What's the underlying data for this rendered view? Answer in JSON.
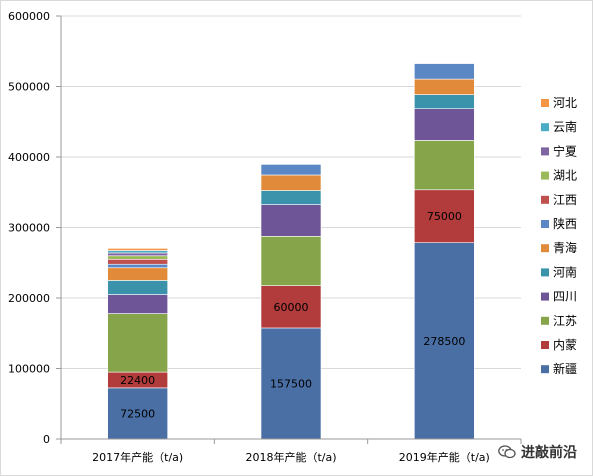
{
  "chart_data": {
    "type": "bar",
    "stacked": true,
    "title": "",
    "xlabel": "",
    "ylabel": "",
    "categories": [
      "2017年产能（t/a)",
      "2018年产能（t/a)",
      "2019年产能（t/a)"
    ],
    "ylim": [
      0,
      600000
    ],
    "yticks": [
      0,
      100000,
      200000,
      300000,
      400000,
      500000,
      600000
    ],
    "grid": "horizontal",
    "legend_position": "right",
    "series": [
      {
        "name": "新疆",
        "color": "#4a6fa5",
        "values": [
          72500,
          157500,
          278500
        ],
        "labels": [
          "72500",
          "157500",
          "278500"
        ]
      },
      {
        "name": "内蒙",
        "color": "#b23b3b",
        "values": [
          22400,
          60000,
          75000
        ],
        "labels": [
          "22400",
          "60000",
          "75000"
        ]
      },
      {
        "name": "江苏",
        "color": "#86a44a",
        "values": [
          83000,
          70000,
          70000
        ],
        "labels": null
      },
      {
        "name": "四川",
        "color": "#6e5597",
        "values": [
          27000,
          45000,
          45000
        ],
        "labels": null
      },
      {
        "name": "河南",
        "color": "#3a93ab",
        "values": [
          20000,
          20000,
          20000
        ],
        "labels": null
      },
      {
        "name": "青海",
        "color": "#e08a3a",
        "values": [
          18000,
          22000,
          22000
        ],
        "labels": null
      },
      {
        "name": "陕西",
        "color": "#5b87c5",
        "values": [
          5000,
          15000,
          22000
        ],
        "labels": null
      },
      {
        "name": "江西",
        "color": "#c0504d",
        "values": [
          7000,
          0,
          0
        ],
        "labels": null
      },
      {
        "name": "湖北",
        "color": "#9bbb59",
        "values": [
          5000,
          0,
          0
        ],
        "labels": null
      },
      {
        "name": "宁夏",
        "color": "#8064a2",
        "values": [
          4000,
          0,
          0
        ],
        "labels": null
      },
      {
        "name": "云南",
        "color": "#4bacc6",
        "values": [
          3500,
          0,
          0
        ],
        "labels": null
      },
      {
        "name": "河北",
        "color": "#f79646",
        "values": [
          3000,
          0,
          0
        ],
        "labels": null
      }
    ]
  },
  "watermark": {
    "text": "进敲前沿",
    "icon": "wechat-icon"
  }
}
